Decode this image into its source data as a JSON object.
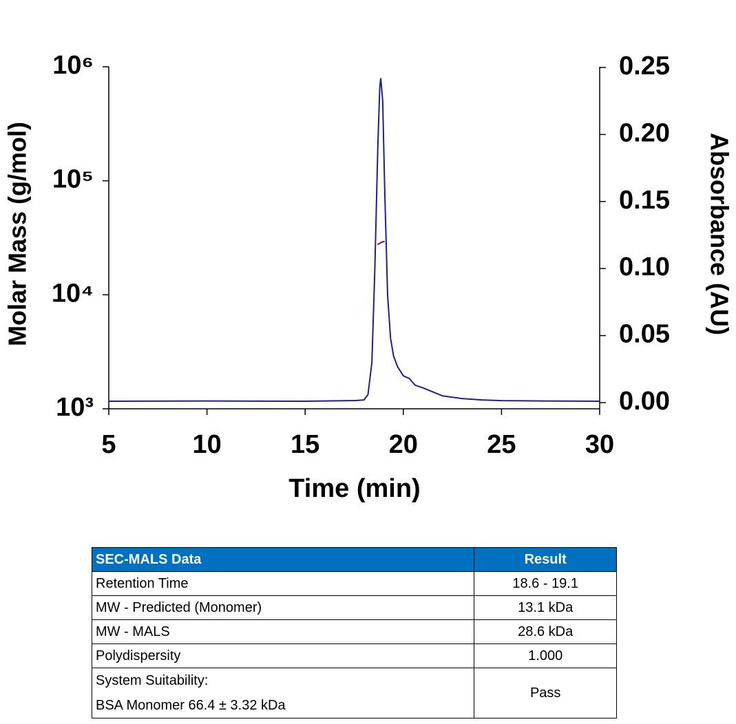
{
  "chart_data": {
    "type": "line",
    "xlabel": "Time (min)",
    "ylabel": "Molar Mass (g/mol)",
    "y2label": "Absorbance (AU)",
    "xlim": [
      5,
      30
    ],
    "xticks": [
      5,
      10,
      15,
      20,
      25,
      30
    ],
    "ylim": [
      1000,
      1000000
    ],
    "yscale": "log",
    "yticks": [
      {
        "value": 1000,
        "label": "10³"
      },
      {
        "value": 10000,
        "label": "10⁴"
      },
      {
        "value": 100000,
        "label": "10⁵"
      },
      {
        "value": 1000000,
        "label": "10⁶"
      }
    ],
    "y2lim": [
      0,
      0.25
    ],
    "y2ticks": [
      {
        "value": 0,
        "label": "0.00"
      },
      {
        "value": 0.05,
        "label": "0.05"
      },
      {
        "value": 0.1,
        "label": "0.10"
      },
      {
        "value": 0.15,
        "label": "0.15"
      },
      {
        "value": 0.2,
        "label": "0.20"
      },
      {
        "value": 0.25,
        "label": "0.25"
      }
    ],
    "series": [
      {
        "color": "#1f1f8f",
        "axis": "y2",
        "x": [
          5,
          10,
          15,
          17.5,
          18.0,
          18.2,
          18.4,
          18.55,
          18.7,
          18.8,
          18.85,
          18.95,
          19.05,
          19.2,
          19.35,
          19.5,
          19.7,
          20.0,
          20.3,
          20.6,
          21,
          21.5,
          22,
          23,
          24,
          25,
          27,
          30
        ],
        "values": [
          0.001,
          0.0012,
          0.001,
          0.0015,
          0.002,
          0.006,
          0.03,
          0.1,
          0.19,
          0.235,
          0.242,
          0.225,
          0.16,
          0.08,
          0.048,
          0.035,
          0.027,
          0.02,
          0.018,
          0.013,
          0.011,
          0.008,
          0.005,
          0.003,
          0.002,
          0.0015,
          0.0012,
          0.001
        ]
      },
      {
        "color": "#8b1a1a",
        "x": [
          18.68,
          18.8,
          18.9,
          19.05
        ],
        "values": [
          27500,
          28300,
          29000,
          29400
        ]
      }
    ]
  },
  "table": {
    "header": [
      "SEC-MALS Data",
      "Result"
    ],
    "rows": [
      [
        "Retention Time",
        "18.6 - 19.1"
      ],
      [
        "MW - Predicted (Monomer)",
        "13.1 kDa"
      ],
      [
        "MW - MALS",
        "28.6 kDa"
      ],
      [
        "Polydispersity",
        "1.000"
      ],
      [
        [
          "System Suitability:",
          "BSA Monomer 66.4 ± 3.32 kDa"
        ],
        "Pass"
      ]
    ]
  }
}
